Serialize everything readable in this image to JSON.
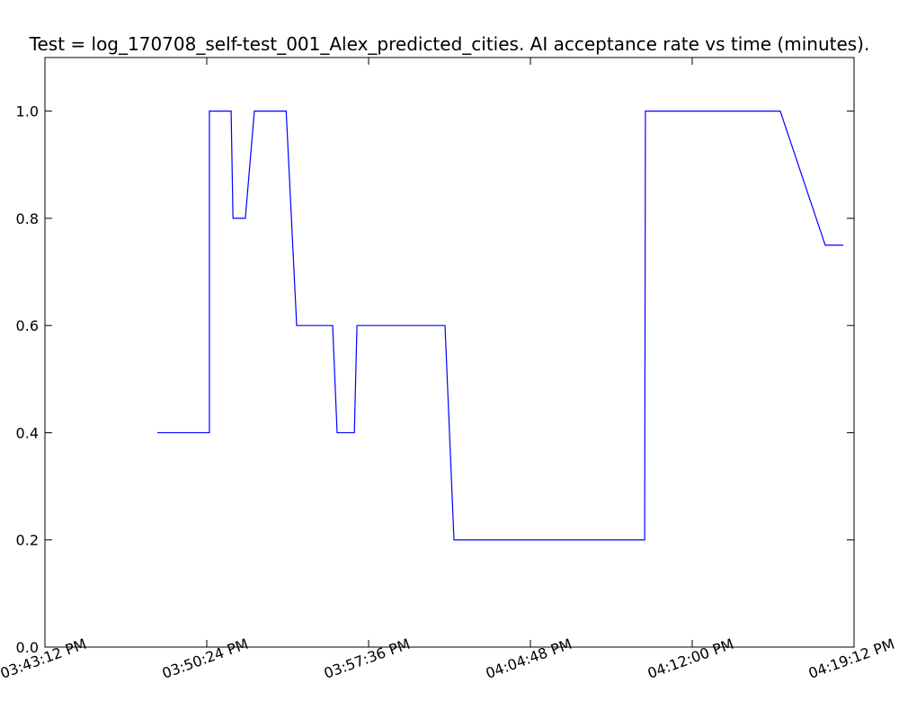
{
  "chart_data": {
    "type": "line",
    "title": "Test = log_170708_self-test_001_Alex_predicted_cities. AI acceptance rate vs time (minutes).",
    "xlabel": "",
    "ylabel": "",
    "x_tick_labels": [
      "03:43:12 PM",
      "03:50:24 PM",
      "03:57:36 PM",
      "04:04:48 PM",
      "04:12:00 PM",
      "04:19:12 PM"
    ],
    "y_tick_labels": [
      "0.0",
      "0.2",
      "0.4",
      "0.6",
      "0.8",
      "1.0"
    ],
    "y_tick_values": [
      0.0,
      0.2,
      0.4,
      0.6,
      0.8,
      1.0
    ],
    "xlim": [
      "15:43:12",
      "16:19:12"
    ],
    "ylim": [
      0.0,
      1.1
    ],
    "grid": false,
    "legend": "none",
    "series": [
      {
        "color": "#0000ff",
        "x": [
          "15:48:12",
          "15:50:31",
          "15:50:31",
          "15:51:29",
          "15:51:34",
          "15:52:07",
          "15:52:31",
          "15:53:56",
          "15:54:24",
          "15:56:00",
          "15:56:12",
          "15:56:58",
          "15:57:05",
          "16:01:00",
          "16:01:24",
          "16:09:53",
          "16:09:55",
          "16:15:55",
          "16:17:55",
          "16:18:43"
        ],
        "y": [
          0.4,
          0.4,
          1.0,
          1.0,
          0.8,
          0.8,
          1.0,
          1.0,
          0.6,
          0.6,
          0.4,
          0.4,
          0.6,
          0.6,
          0.2,
          0.2,
          1.0,
          1.0,
          0.75,
          0.75
        ]
      }
    ]
  }
}
